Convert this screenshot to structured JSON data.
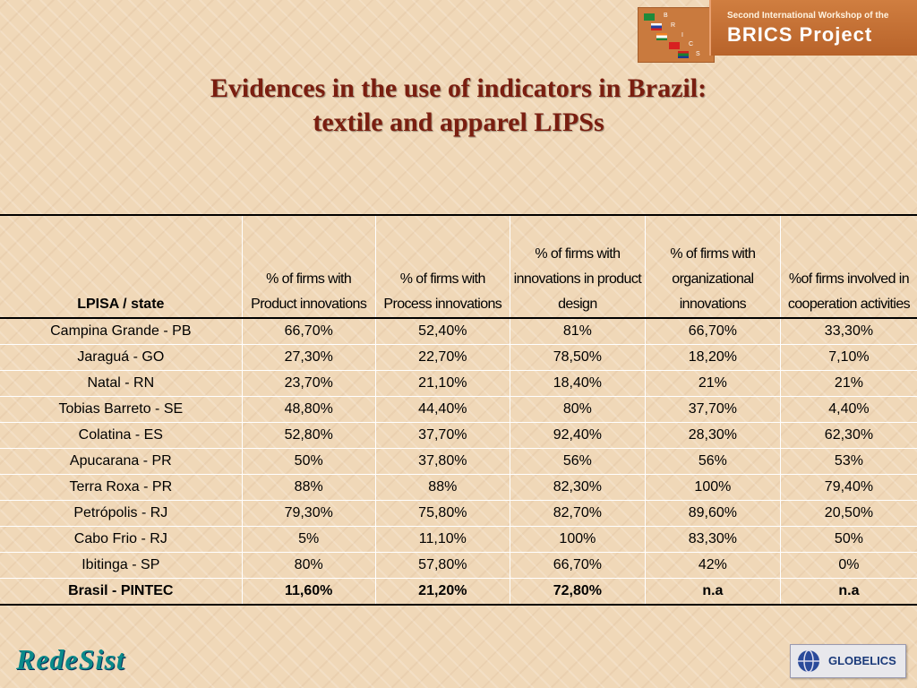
{
  "banner": {
    "line1": "Second International Workshop of the",
    "line2": "BRICS Project",
    "letters": [
      "B",
      "R",
      "I",
      "C",
      "S"
    ]
  },
  "title": {
    "line1": "Evidences in the use of indicators in Brazil:",
    "line2": "textile and apparel LIPSs"
  },
  "table": {
    "headers": [
      "LPISA / state",
      "% of firms with Product innovations",
      "% of firms with Process innovations",
      "% of firms with innovations in product design",
      "% of firms with organizational innovations",
      "%of firms involved in cooperation activities"
    ],
    "rows": [
      [
        "Campina Grande - PB",
        "66,70%",
        "52,40%",
        "81%",
        "66,70%",
        "33,30%"
      ],
      [
        "Jaraguá - GO",
        "27,30%",
        "22,70%",
        "78,50%",
        "18,20%",
        "7,10%"
      ],
      [
        "Natal - RN",
        "23,70%",
        "21,10%",
        "18,40%",
        "21%",
        "21%"
      ],
      [
        "Tobias Barreto - SE",
        "48,80%",
        "44,40%",
        "80%",
        "37,70%",
        "4,40%"
      ],
      [
        "Colatina - ES",
        "52,80%",
        "37,70%",
        "92,40%",
        "28,30%",
        "62,30%"
      ],
      [
        "Apucarana - PR",
        "50%",
        "37,80%",
        "56%",
        "56%",
        "53%"
      ],
      [
        "Terra Roxa - PR",
        "88%",
        "88%",
        "82,30%",
        "100%",
        "79,40%"
      ],
      [
        "Petrópolis - RJ",
        "79,30%",
        "75,80%",
        "82,70%",
        "89,60%",
        "20,50%"
      ],
      [
        "Cabo Frio - RJ",
        "5%",
        "11,10%",
        "100%",
        "83,30%",
        "50%"
      ],
      [
        "Ibitinga - SP",
        "80%",
        "57,80%",
        "66,70%",
        "42%",
        "0%"
      ],
      [
        "Brasil - PINTEC",
        "11,60%",
        "21,20%",
        "72,80%",
        "n.a",
        "n.a"
      ]
    ]
  },
  "footer": {
    "left_logo": "RedeSist",
    "right_logo": "GLOBELICS"
  },
  "colors": {
    "title": "#7a1e10",
    "banner": "#c97a3e",
    "background": "#f0d8b8"
  }
}
